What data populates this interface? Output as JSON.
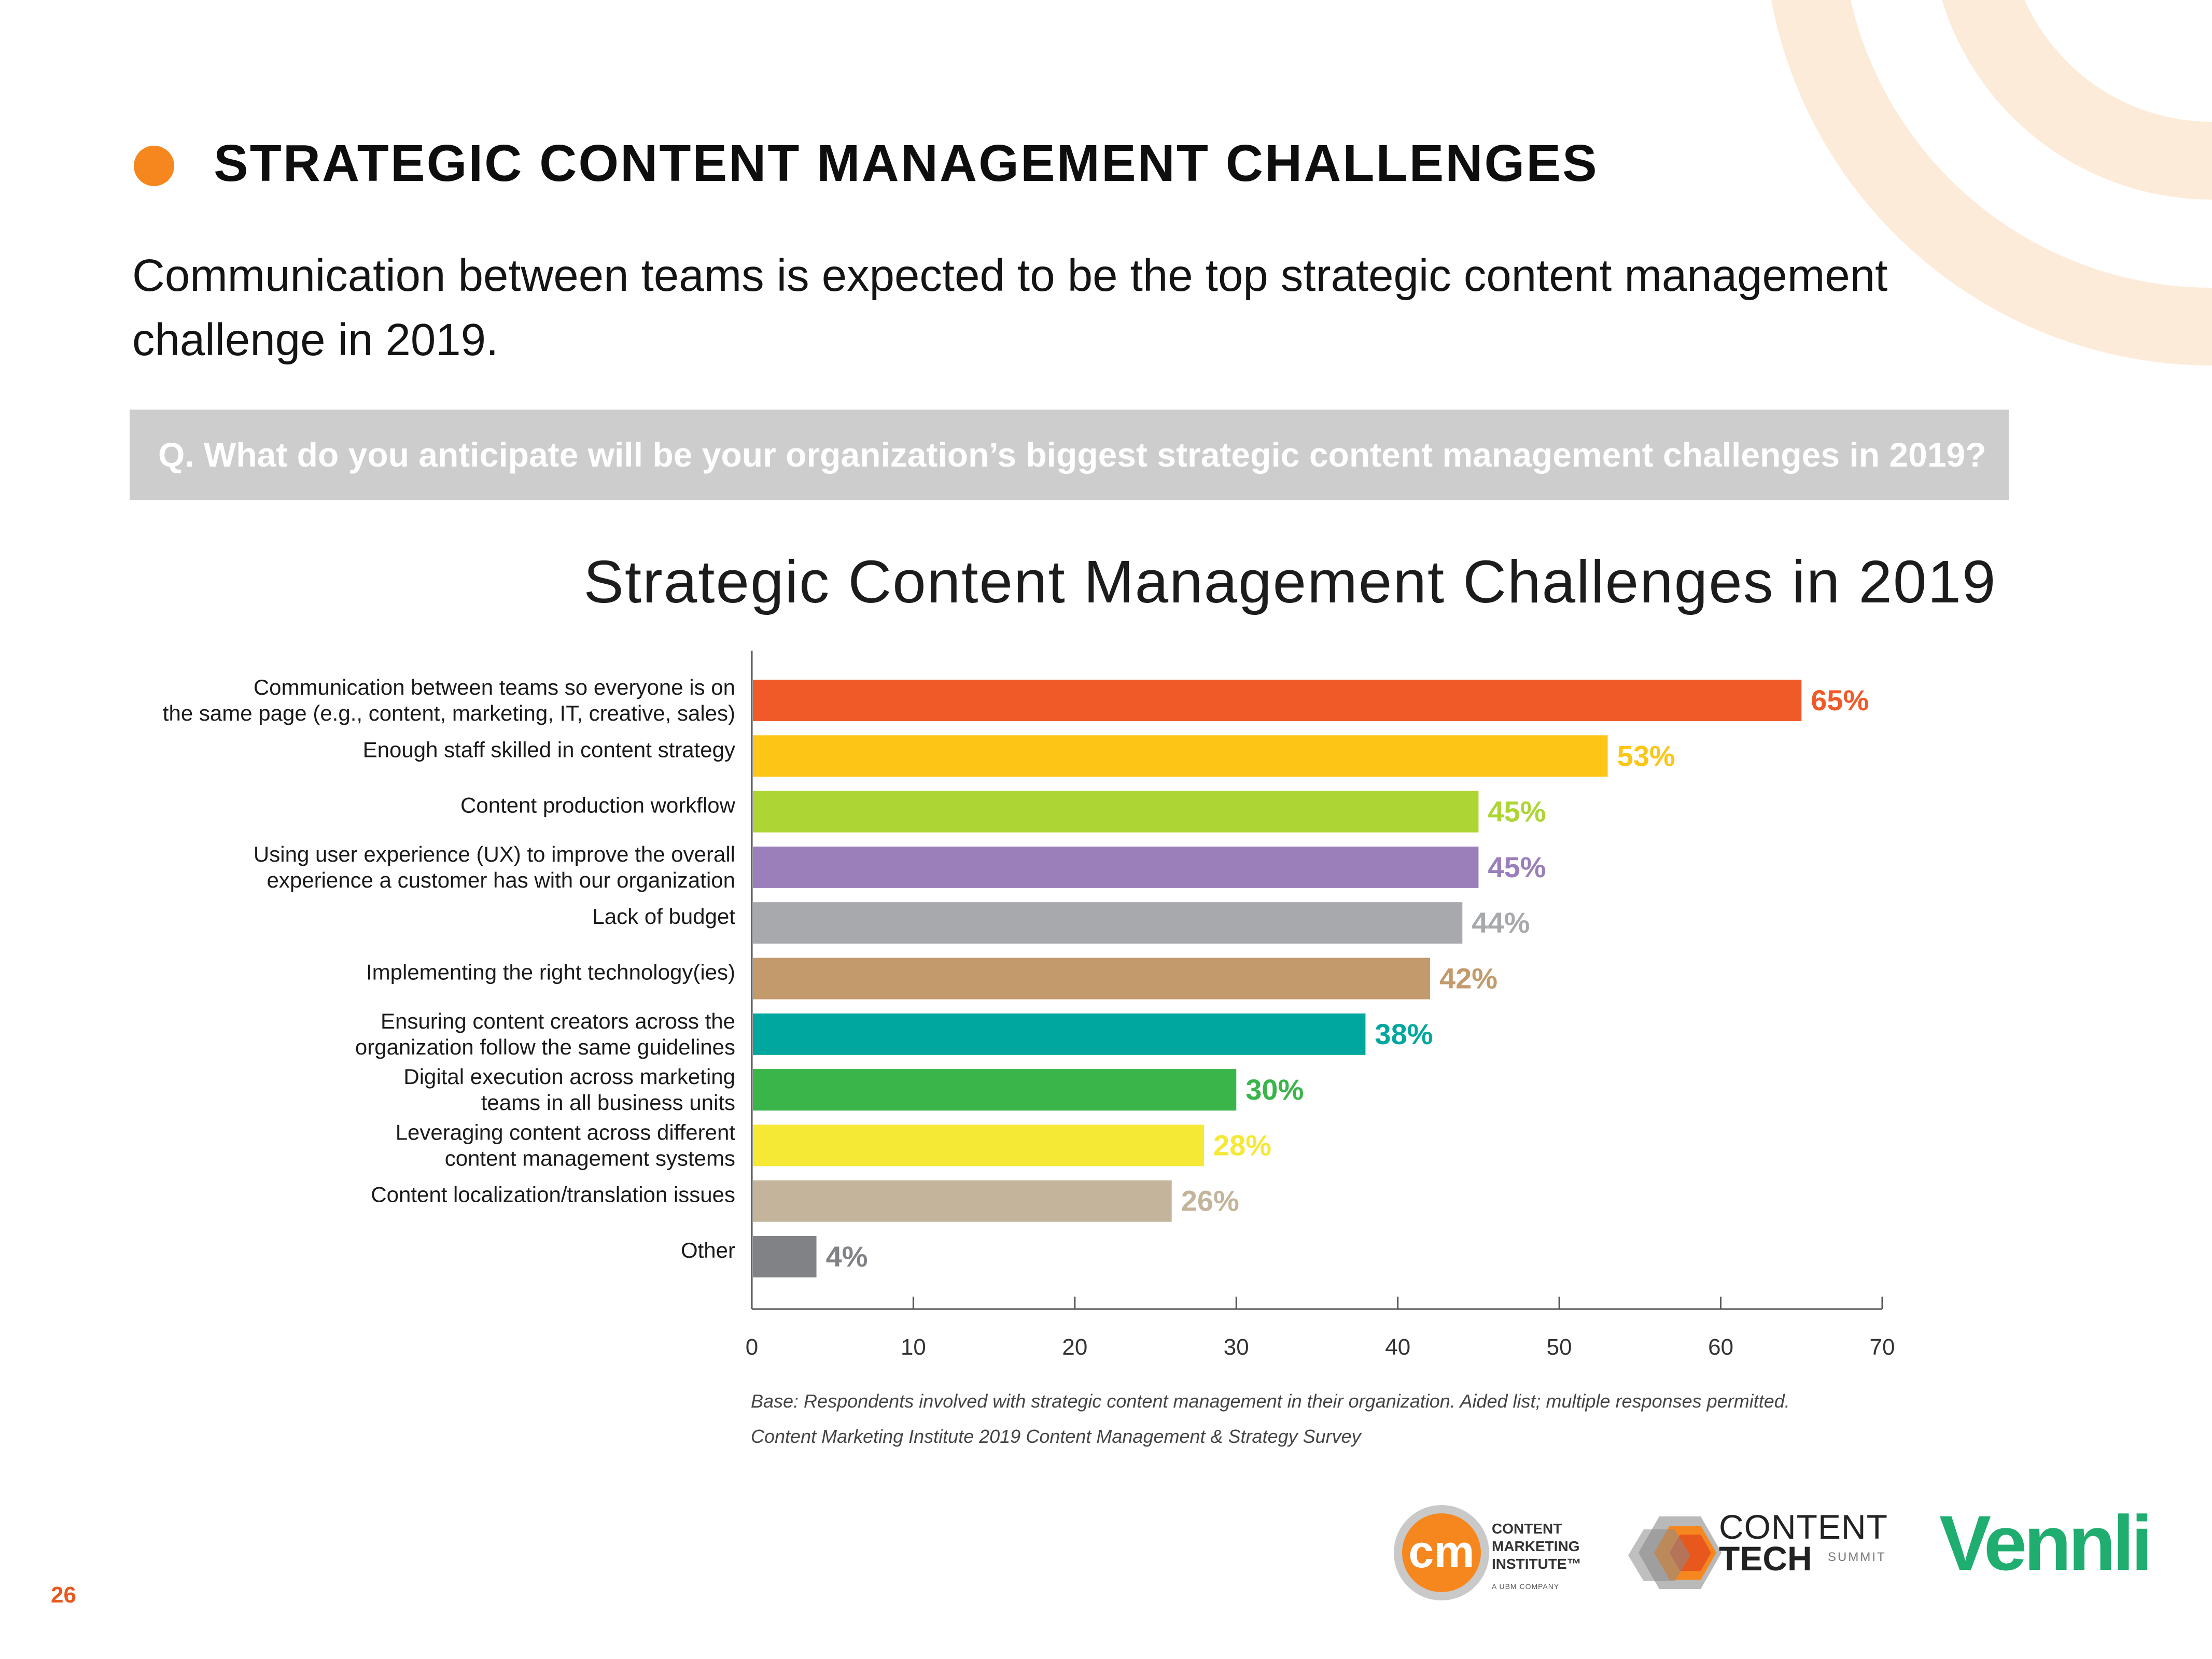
{
  "header": {
    "title": "STRATEGIC CONTENT MANAGEMENT CHALLENGES",
    "subtitle": "Communication between teams is expected to be the top strategic content management challenge in 2019."
  },
  "question": "Q. What do you anticipate will be your organization’s biggest strategic content management challenges in 2019?",
  "chart_data": {
    "type": "bar",
    "orientation": "horizontal",
    "title": "Strategic Content Management Challenges in 2019",
    "categories": [
      [
        "Communication between teams so everyone is on",
        "the same page (e.g., content, marketing, IT, creative, sales)"
      ],
      [
        "Enough staff skilled in content strategy"
      ],
      [
        "Content production workflow"
      ],
      [
        "Using user experience (UX) to improve the overall",
        "experience a customer has with our organization"
      ],
      [
        "Lack of budget"
      ],
      [
        "Implementing the right technology(ies)"
      ],
      [
        "Ensuring content creators across the",
        "organization follow the same guidelines"
      ],
      [
        "Digital execution across marketing",
        "teams in all business units"
      ],
      [
        "Leveraging content across different",
        "content management systems"
      ],
      [
        "Content localization/translation issues"
      ],
      [
        "Other"
      ]
    ],
    "values": [
      65,
      53,
      45,
      45,
      44,
      42,
      38,
      30,
      28,
      26,
      4
    ],
    "value_labels": [
      "65%",
      "53%",
      "45%",
      "45%",
      "44%",
      "42%",
      "38%",
      "30%",
      "28%",
      "26%",
      "4%"
    ],
    "colors": [
      "#ef5a28",
      "#fdc617",
      "#add533",
      "#9a7fbb",
      "#a7a9ac",
      "#c39a6b",
      "#00a79e",
      "#39b54a",
      "#f5e935",
      "#c4b49b",
      "#808285"
    ],
    "xlim": [
      0,
      70
    ],
    "xticks": [
      "0",
      "10",
      "20",
      "30",
      "40",
      "50",
      "60",
      "70"
    ],
    "grid": false,
    "legend": "none"
  },
  "footnotes": [
    "Base: Respondents involved with strategic content management in their organization. Aided list; multiple responses permitted.",
    "Content Marketing Institute 2019 Content Management & Strategy Survey"
  ],
  "page_number": "26",
  "logos": {
    "cmi_lines": [
      "CONTENT",
      "MARKETING",
      "INSTITUTE™"
    ],
    "cmi_tagline": "A UBM COMPANY",
    "cmi_mark": "cm",
    "content_tech": [
      "CONTENT",
      "TECH",
      "SUMMIT"
    ],
    "vennli": "Vennli"
  },
  "colors": {
    "accent_orange": "#f6871f",
    "question_bar": "#cdcdcd",
    "page_number": "#e8581d",
    "vennli_green": "#1fae6f",
    "decor_arc": "#fdebd9"
  }
}
